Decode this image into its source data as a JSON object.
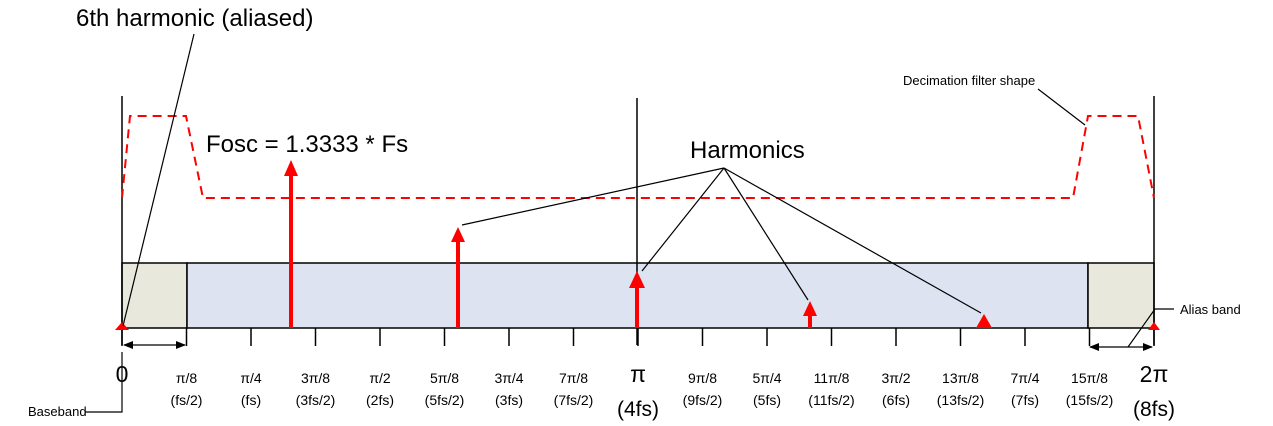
{
  "labels": {
    "sixth_harmonic": "6th harmonic (aliased)",
    "fosc": "Fosc = 1.3333 * Fs",
    "harmonics": "Harmonics",
    "decimation_filter": "Decimation filter shape",
    "alias_band": "Alias band",
    "baseband": "Baseband"
  },
  "colors": {
    "signal": "#ff0000",
    "filter": "#ff0000",
    "main_band": "#dde3f1",
    "alias_band": "#e8e8dd",
    "axis": "#000000"
  },
  "axis_ticks": [
    {
      "top": "0",
      "bottom": ""
    },
    {
      "top": "π/8",
      "bottom": "(fs/2)"
    },
    {
      "top": "π/4",
      "bottom": "(fs)"
    },
    {
      "top": "3π/8",
      "bottom": "(3fs/2)"
    },
    {
      "top": "π/2",
      "bottom": "(2fs)"
    },
    {
      "top": "5π/8",
      "bottom": "(5fs/2)"
    },
    {
      "top": "3π/4",
      "bottom": "(3fs)"
    },
    {
      "top": "7π/8",
      "bottom": "(7fs/2)"
    },
    {
      "top": "π",
      "bottom": "(4fs)"
    },
    {
      "top": "9π/8",
      "bottom": "(9fs/2)"
    },
    {
      "top": "5π/4",
      "bottom": "(5fs)"
    },
    {
      "top": "11π/8",
      "bottom": "(11fs/2)"
    },
    {
      "top": "3π/2",
      "bottom": "(6fs)"
    },
    {
      "top": "13π/8",
      "bottom": "(13fs/2)"
    },
    {
      "top": "7π/4",
      "bottom": "(7fs)"
    },
    {
      "top": "15π/8",
      "bottom": "(15fs/2)"
    },
    {
      "top": "2π",
      "bottom": "(8fs)"
    }
  ],
  "signal_lines": [
    {
      "name": "fundamental",
      "position_pi_eighths": 2.67,
      "relative_height": 1.0
    },
    {
      "name": "harmonic-2",
      "position_pi_eighths": 5.33,
      "relative_height": 0.54
    },
    {
      "name": "harmonic-3",
      "position_pi_eighths": 8.0,
      "relative_height": 0.33
    },
    {
      "name": "harmonic-4",
      "position_pi_eighths": 10.67,
      "relative_height": 0.1
    },
    {
      "name": "harmonic-5",
      "position_pi_eighths": 13.33,
      "relative_height": 0.03
    },
    {
      "name": "harmonic-6-aliased",
      "position_pi_eighths": 0.0,
      "relative_height": 0.0
    }
  ]
}
